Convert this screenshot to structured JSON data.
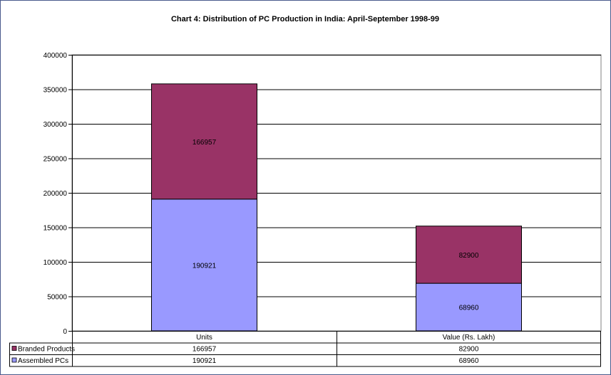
{
  "chart_data": {
    "type": "bar",
    "stacked": true,
    "title": "Chart 4: Distribution of PC Production in India: April-September 1998-99",
    "categories": [
      "Units",
      "Value (Rs. Lakh)"
    ],
    "series": [
      {
        "name": "Assembled PCs",
        "values": [
          190921,
          68960
        ],
        "color": "#9999ff"
      },
      {
        "name": "Branded Products",
        "values": [
          166957,
          82900
        ],
        "color": "#993366"
      }
    ],
    "ylim": [
      0,
      400000
    ],
    "yticks": [
      0,
      50000,
      100000,
      150000,
      200000,
      250000,
      300000,
      350000,
      400000
    ],
    "grid": true,
    "legend": "data-table-below",
    "data_table": {
      "rows": [
        {
          "label": "Branded Products",
          "values": [
            "166957",
            "82900"
          ],
          "color": "#993366"
        },
        {
          "label": "Assembled PCs",
          "values": [
            "190921",
            "68960"
          ],
          "color": "#9999ff"
        }
      ]
    }
  }
}
